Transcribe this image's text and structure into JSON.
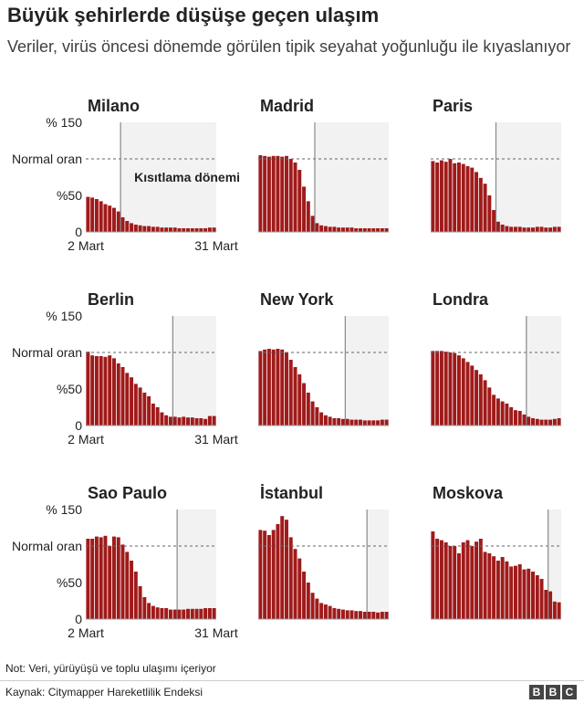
{
  "header": {
    "title": "Büyük şehirlerde düşüşe geçen ulaşım",
    "subtitle": "Veriler, virüs öncesi dönemde görülen tipik seyahat yoğunluğu ile kıyaslanıyor"
  },
  "footer": {
    "note": "Not: Veri, yürüyüşü ve toplu ulaşımı içeriyor",
    "source": "Kaynak: Citymapper Hareketlilik Endeksi",
    "logo_letters": [
      "B",
      "B",
      "C"
    ]
  },
  "colors": {
    "bar": "#a01a1a",
    "shade": "#f2f2f2",
    "line": "#888888"
  },
  "labels": {
    "y_top": "% 150",
    "y_normal": "Normal oran",
    "y_mid": "%50",
    "y_zero": "0",
    "x_start": "2 Mart",
    "x_end": "31 Mart",
    "restriction": "Kısıtlama dönemi"
  },
  "chart_data": [
    {
      "type": "bar",
      "title": "Milano",
      "ylim": [
        0,
        150
      ],
      "normal": 100,
      "lockdown_day": 8,
      "x_start": "2 Mart",
      "x_end": "31 Mart",
      "values": [
        48,
        47,
        45,
        42,
        38,
        36,
        33,
        28,
        20,
        15,
        12,
        10,
        9,
        8,
        8,
        7,
        7,
        6,
        6,
        6,
        6,
        5,
        5,
        5,
        5,
        5,
        5,
        5,
        6,
        6
      ]
    },
    {
      "type": "bar",
      "title": "Madrid",
      "ylim": [
        0,
        150
      ],
      "normal": 100,
      "lockdown_day": 13,
      "values": [
        105,
        104,
        103,
        104,
        104,
        103,
        104,
        100,
        95,
        85,
        62,
        42,
        22,
        12,
        9,
        8,
        7,
        7,
        6,
        6,
        6,
        6,
        5,
        5,
        5,
        5,
        5,
        5,
        5,
        5
      ]
    },
    {
      "type": "bar",
      "title": "Paris",
      "ylim": [
        0,
        150
      ],
      "normal": 100,
      "lockdown_day": 15,
      "values": [
        97,
        95,
        98,
        96,
        100,
        94,
        95,
        93,
        90,
        88,
        82,
        74,
        66,
        50,
        30,
        14,
        10,
        8,
        7,
        7,
        7,
        6,
        6,
        6,
        7,
        7,
        6,
        6,
        7,
        7
      ]
    },
    {
      "type": "bar",
      "title": "Berlin",
      "ylim": [
        0,
        150
      ],
      "normal": 100,
      "lockdown_day": 20,
      "values": [
        101,
        96,
        95,
        95,
        94,
        96,
        92,
        85,
        80,
        72,
        66,
        57,
        52,
        45,
        40,
        30,
        25,
        18,
        14,
        12,
        12,
        11,
        12,
        11,
        11,
        10,
        10,
        9,
        13,
        13
      ]
    },
    {
      "type": "bar",
      "title": "New York",
      "ylim": [
        0,
        150
      ],
      "normal": 100,
      "lockdown_day": 20,
      "values": [
        102,
        104,
        105,
        104,
        105,
        104,
        100,
        90,
        80,
        70,
        58,
        45,
        33,
        25,
        18,
        14,
        12,
        10,
        10,
        9,
        9,
        8,
        8,
        8,
        7,
        7,
        7,
        7,
        8,
        8
      ]
    },
    {
      "type": "bar",
      "title": "Londra",
      "ylim": [
        0,
        150
      ],
      "normal": 100,
      "lockdown_day": 22,
      "values": [
        102,
        102,
        102,
        101,
        100,
        99,
        96,
        92,
        87,
        82,
        76,
        70,
        62,
        52,
        42,
        37,
        33,
        30,
        25,
        21,
        20,
        15,
        12,
        10,
        9,
        8,
        8,
        8,
        9,
        10
      ]
    },
    {
      "type": "bar",
      "title": "Sao Paulo",
      "ylim": [
        0,
        150
      ],
      "normal": 100,
      "lockdown_day": 21,
      "values": [
        110,
        110,
        113,
        112,
        114,
        100,
        113,
        112,
        102,
        92,
        80,
        65,
        45,
        30,
        22,
        18,
        16,
        15,
        15,
        13,
        13,
        13,
        13,
        14,
        14,
        14,
        14,
        15,
        15,
        15
      ]
    },
    {
      "type": "bar",
      "title": "İstanbul",
      "ylim": [
        0,
        150
      ],
      "normal": 100,
      "lockdown_day": 25,
      "values": [
        122,
        121,
        115,
        122,
        130,
        141,
        136,
        112,
        96,
        83,
        65,
        50,
        36,
        28,
        22,
        20,
        18,
        15,
        14,
        13,
        12,
        12,
        11,
        11,
        10,
        10,
        10,
        9,
        10,
        10
      ]
    },
    {
      "type": "bar",
      "title": "Moskova",
      "ylim": [
        0,
        150
      ],
      "normal": 100,
      "lockdown_day": 27,
      "values": [
        120,
        110,
        108,
        105,
        100,
        100,
        90,
        105,
        108,
        100,
        106,
        110,
        92,
        90,
        86,
        80,
        85,
        79,
        72,
        73,
        75,
        68,
        69,
        65,
        60,
        55,
        40,
        38,
        24,
        23
      ]
    }
  ]
}
